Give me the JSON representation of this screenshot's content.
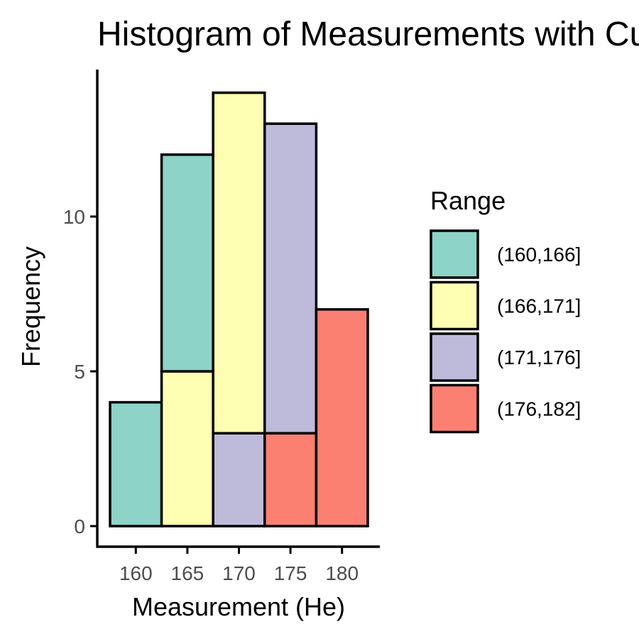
{
  "chart_data": {
    "type": "bar",
    "stacked": true,
    "title": "Histogram of Measurements with Custom Colors",
    "xlabel": "Measurement (He)",
    "ylabel": "Frequency",
    "x_ticks": [
      160,
      165,
      170,
      175,
      180
    ],
    "y_ticks": [
      0,
      5,
      10
    ],
    "xlim": [
      157,
      183
    ],
    "ylim": [
      0,
      14.7
    ],
    "bin_width": 5,
    "bins": [
      {
        "x": 160,
        "segments": [
          {
            "series": "(160,166]",
            "count": 4
          }
        ]
      },
      {
        "x": 165,
        "segments": [
          {
            "series": "(166,171]",
            "count": 5
          },
          {
            "series": "(160,166]",
            "count": 7
          }
        ]
      },
      {
        "x": 170,
        "segments": [
          {
            "series": "(171,176]",
            "count": 3
          },
          {
            "series": "(166,171]",
            "count": 11
          }
        ]
      },
      {
        "x": 175,
        "segments": [
          {
            "series": "(176,182]",
            "count": 3
          },
          {
            "series": "(171,176]",
            "count": 10
          }
        ]
      },
      {
        "x": 180,
        "segments": [
          {
            "series": "(176,182]",
            "count": 7
          }
        ]
      }
    ],
    "series": [
      {
        "name": "(160,166]",
        "color": "#8dd3c7"
      },
      {
        "name": "(166,171]",
        "color": "#ffffb3"
      },
      {
        "name": "(171,176]",
        "color": "#bebada"
      },
      {
        "name": "(176,182]",
        "color": "#fb8072"
      }
    ],
    "legend": {
      "title": "Range",
      "position": "right"
    },
    "grid": false
  }
}
